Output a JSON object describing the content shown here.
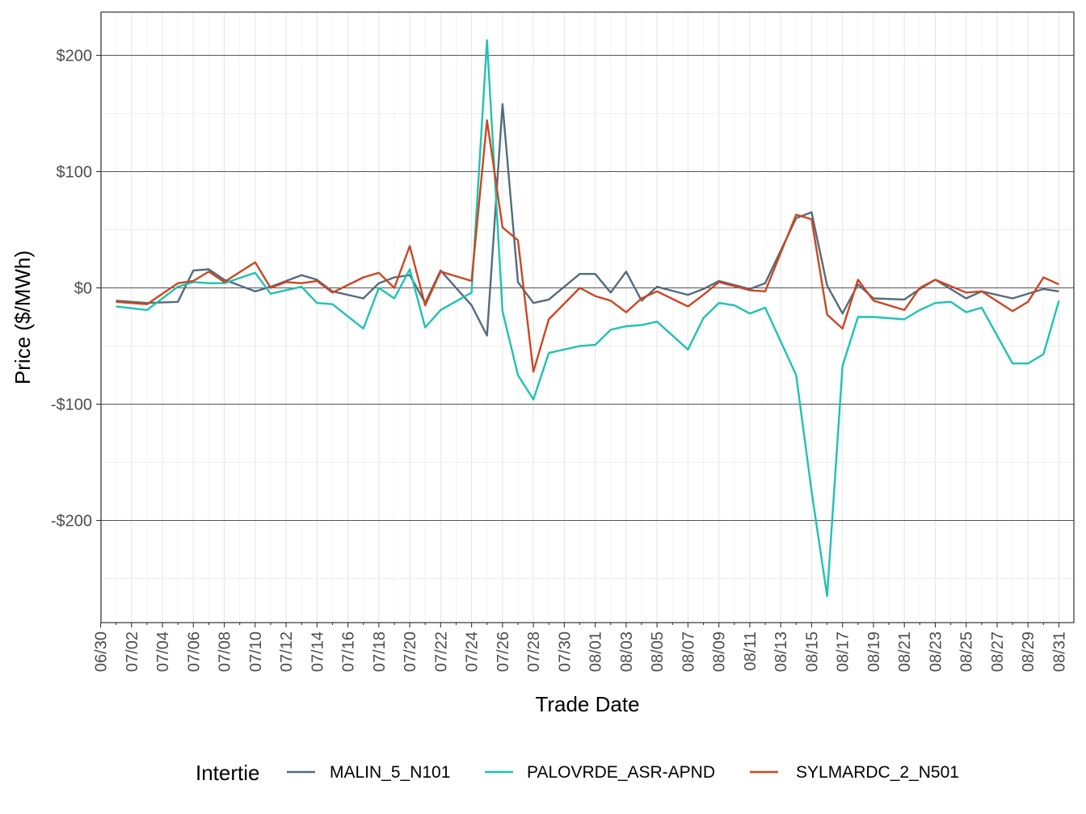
{
  "chart_data": {
    "type": "line",
    "title": "",
    "xlabel": "Trade Date",
    "ylabel": "Price ($/MWh)",
    "ylim": [
      -285,
      237
    ],
    "yticks": [
      -200,
      -100,
      0,
      100,
      200
    ],
    "ytick_labels": [
      "-$200",
      "-$100",
      "$0",
      "$100",
      "$200"
    ],
    "xtick_labels": [
      "06/30",
      "07/02",
      "07/04",
      "07/06",
      "07/08",
      "07/10",
      "07/12",
      "07/14",
      "07/16",
      "07/18",
      "07/20",
      "07/22",
      "07/24",
      "07/26",
      "07/28",
      "07/30",
      "08/01",
      "08/03",
      "08/05",
      "08/07",
      "08/09",
      "08/11",
      "08/13",
      "08/15",
      "08/17",
      "08/19",
      "08/21",
      "08/23",
      "08/25",
      "08/27",
      "08/29",
      "08/31"
    ],
    "grid": true,
    "legend_position": "bottom",
    "legend_title": "Intertie",
    "series": [
      {
        "name": "MALIN_5_N101",
        "color": "#536c7c",
        "points": [
          [
            "07/01",
            -11
          ],
          [
            "07/03",
            -13
          ],
          [
            "07/05",
            -12
          ],
          [
            "07/06",
            15
          ],
          [
            "07/07",
            16
          ],
          [
            "07/08",
            7
          ],
          [
            "07/10",
            -3
          ],
          [
            "07/11",
            1
          ],
          [
            "07/13",
            11
          ],
          [
            "07/14",
            7
          ],
          [
            "07/15",
            -3
          ],
          [
            "07/17",
            -9
          ],
          [
            "07/18",
            4
          ],
          [
            "07/19",
            9
          ],
          [
            "07/20",
            11
          ],
          [
            "07/21",
            -13
          ],
          [
            "07/22",
            15
          ],
          [
            "07/24",
            -15
          ],
          [
            "07/25",
            -41
          ],
          [
            "07/26",
            158
          ],
          [
            "07/27",
            5
          ],
          [
            "07/28",
            -13
          ],
          [
            "07/29",
            -10
          ],
          [
            "07/31",
            12
          ],
          [
            "08/01",
            12
          ],
          [
            "08/02",
            -4
          ],
          [
            "08/03",
            14
          ],
          [
            "08/04",
            -11
          ],
          [
            "08/05",
            1
          ],
          [
            "08/07",
            -6
          ],
          [
            "08/08",
            -1
          ],
          [
            "08/09",
            6
          ],
          [
            "08/11",
            -1
          ],
          [
            "08/12",
            4
          ],
          [
            "08/14",
            60
          ],
          [
            "08/15",
            65
          ],
          [
            "08/16",
            2
          ],
          [
            "08/17",
            -22
          ],
          [
            "08/18",
            3
          ],
          [
            "08/19",
            -9
          ],
          [
            "08/21",
            -10
          ],
          [
            "08/22",
            -1
          ],
          [
            "08/23",
            7
          ],
          [
            "08/25",
            -9
          ],
          [
            "08/26",
            -3
          ],
          [
            "08/28",
            -9
          ],
          [
            "08/30",
            -1
          ],
          [
            "08/31",
            -3
          ]
        ]
      },
      {
        "name": "PALOVRDE_ASR-APND",
        "color": "#1ec3b0",
        "points": [
          [
            "07/01",
            -16
          ],
          [
            "07/03",
            -19
          ],
          [
            "07/05",
            1
          ],
          [
            "07/06",
            5
          ],
          [
            "07/07",
            4
          ],
          [
            "07/08",
            4
          ],
          [
            "07/10",
            13
          ],
          [
            "07/11",
            -5
          ],
          [
            "07/13",
            1
          ],
          [
            "07/14",
            -13
          ],
          [
            "07/15",
            -14
          ],
          [
            "07/17",
            -35
          ],
          [
            "07/18",
            0
          ],
          [
            "07/19",
            -9
          ],
          [
            "07/20",
            16
          ],
          [
            "07/21",
            -34
          ],
          [
            "07/22",
            -19
          ],
          [
            "07/24",
            -4
          ],
          [
            "07/25",
            213
          ],
          [
            "07/26",
            -20
          ],
          [
            "07/27",
            -75
          ],
          [
            "07/28",
            -96
          ],
          [
            "07/29",
            -56
          ],
          [
            "07/31",
            -50
          ],
          [
            "08/01",
            -49
          ],
          [
            "08/02",
            -36
          ],
          [
            "08/03",
            -33
          ],
          [
            "08/04",
            -32
          ],
          [
            "08/05",
            -29
          ],
          [
            "08/07",
            -53
          ],
          [
            "08/08",
            -26
          ],
          [
            "08/09",
            -13
          ],
          [
            "08/10",
            -15
          ],
          [
            "08/11",
            -22
          ],
          [
            "08/12",
            -17
          ],
          [
            "08/14",
            -75
          ],
          [
            "08/15",
            -175
          ],
          [
            "08/16",
            -265
          ],
          [
            "08/17",
            -67
          ],
          [
            "08/18",
            -25
          ],
          [
            "08/19",
            -25
          ],
          [
            "08/21",
            -27
          ],
          [
            "08/22",
            -19
          ],
          [
            "08/23",
            -13
          ],
          [
            "08/24",
            -12
          ],
          [
            "08/25",
            -21
          ],
          [
            "08/26",
            -17
          ],
          [
            "08/28",
            -65
          ],
          [
            "08/29",
            -65
          ],
          [
            "08/30",
            -57
          ],
          [
            "08/31",
            -11
          ]
        ]
      },
      {
        "name": "SYLMARDC_2_N501",
        "color": "#cd4622",
        "points": [
          [
            "07/01",
            -12
          ],
          [
            "07/03",
            -14
          ],
          [
            "07/05",
            4
          ],
          [
            "07/06",
            6
          ],
          [
            "07/07",
            14
          ],
          [
            "07/08",
            5
          ],
          [
            "07/10",
            22
          ],
          [
            "07/11",
            0
          ],
          [
            "07/12",
            5
          ],
          [
            "07/13",
            4
          ],
          [
            "07/14",
            6
          ],
          [
            "07/15",
            -4
          ],
          [
            "07/17",
            9
          ],
          [
            "07/18",
            13
          ],
          [
            "07/19",
            0
          ],
          [
            "07/20",
            36
          ],
          [
            "07/21",
            -15
          ],
          [
            "07/22",
            14
          ],
          [
            "07/24",
            6
          ],
          [
            "07/25",
            144
          ],
          [
            "07/26",
            52
          ],
          [
            "07/27",
            41
          ],
          [
            "07/28",
            -72
          ],
          [
            "07/29",
            -27
          ],
          [
            "07/31",
            0
          ],
          [
            "08/01",
            -7
          ],
          [
            "08/02",
            -11
          ],
          [
            "08/03",
            -21
          ],
          [
            "08/04",
            -9
          ],
          [
            "08/05",
            -3
          ],
          [
            "08/07",
            -16
          ],
          [
            "08/08",
            -6
          ],
          [
            "08/09",
            5
          ],
          [
            "08/11",
            -2
          ],
          [
            "08/12",
            -3
          ],
          [
            "08/14",
            63
          ],
          [
            "08/15",
            59
          ],
          [
            "08/16",
            -23
          ],
          [
            "08/17",
            -35
          ],
          [
            "08/18",
            7
          ],
          [
            "08/19",
            -11
          ],
          [
            "08/21",
            -19
          ],
          [
            "08/22",
            0
          ],
          [
            "08/23",
            7
          ],
          [
            "08/25",
            -4
          ],
          [
            "08/26",
            -3
          ],
          [
            "08/28",
            -20
          ],
          [
            "08/29",
            -12
          ],
          [
            "08/30",
            9
          ],
          [
            "08/31",
            3
          ]
        ]
      }
    ]
  }
}
